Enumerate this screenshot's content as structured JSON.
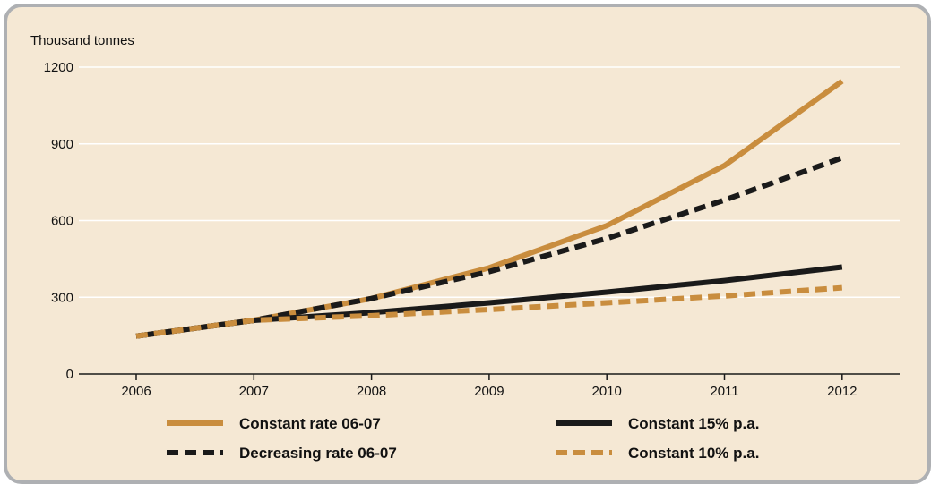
{
  "chart_data": {
    "type": "line",
    "ylabel": "Thousand tonnes",
    "xlabel": "",
    "x": [
      "2006",
      "2007",
      "2008",
      "2009",
      "2010",
      "2011",
      "2012"
    ],
    "ylim": [
      0,
      1200
    ],
    "yticks": [
      0,
      300,
      600,
      900,
      1200
    ],
    "grid": "horizontal",
    "legend_position": "bottom",
    "series": [
      {
        "name": "Constant rate 06-07",
        "values": [
          148,
          210,
          295,
          415,
          580,
          815,
          1145
        ],
        "color": "#c98d3e",
        "style": "solid"
      },
      {
        "name": "Decreasing rate 06-07",
        "values": [
          148,
          210,
          295,
          400,
          530,
          680,
          845
        ],
        "color": "#1a1a1a",
        "style": "dashed"
      },
      {
        "name": "Constant 15% p.a.",
        "values": [
          148,
          210,
          240,
          278,
          320,
          365,
          418
        ],
        "color": "#1a1a1a",
        "style": "solid"
      },
      {
        "name": "Constant 10% p.a.",
        "values": [
          148,
          210,
          228,
          252,
          278,
          305,
          337
        ],
        "color": "#c98d3e",
        "style": "dashed"
      }
    ]
  }
}
